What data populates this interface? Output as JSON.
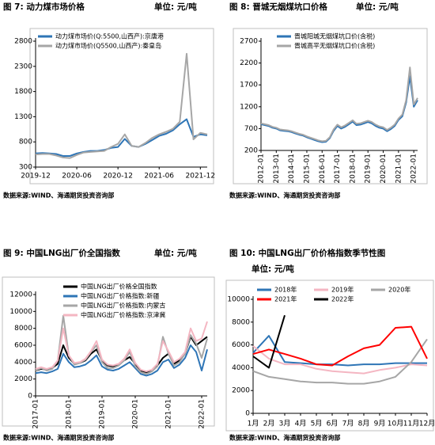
{
  "chart_data": [
    {
      "type": "line",
      "title": "图 7: 动力煤市场价格",
      "unit": "单位: 元/吨",
      "source": "数据来源:WIND、海通期货投资咨询部",
      "categories": [
        "2019-12",
        null,
        null,
        null,
        null,
        null,
        "2020-06",
        null,
        null,
        null,
        null,
        null,
        "2020-12",
        null,
        null,
        null,
        null,
        null,
        "2021-06",
        null,
        null,
        null,
        null,
        null,
        "2021-12",
        null
      ],
      "series": [
        {
          "name": "动力煤市场价(Q:5500,山西产):京唐港",
          "color": "#2e75b6",
          "values": [
            570,
            580,
            570,
            560,
            520,
            520,
            570,
            600,
            620,
            620,
            640,
            680,
            700,
            860,
            720,
            700,
            760,
            840,
            920,
            960,
            1030,
            1150,
            1250,
            900,
            950,
            930
          ]
        },
        {
          "name": "动力煤市场价(Q5500,山西产):秦皇岛",
          "color": "#a6a6a6",
          "values": [
            550,
            560,
            560,
            530,
            490,
            480,
            540,
            590,
            600,
            610,
            620,
            700,
            760,
            950,
            720,
            700,
            780,
            880,
            950,
            1000,
            1060,
            1200,
            2550,
            850,
            980,
            950
          ]
        }
      ],
      "ylim": [
        300,
        2800
      ],
      "yticks": [
        300,
        800,
        1300,
        1800,
        2300,
        2800
      ],
      "x_labels_rotated": false,
      "legend": "upper left",
      "legend_columns": 1
    },
    {
      "type": "line",
      "title": "图 8: 晋城无烟煤坑口价格",
      "unit": "单位: 元/吨",
      "source": "数据来源:WIND、海通期货投资咨询部",
      "categories": [
        "2012-01",
        null,
        null,
        null,
        "2013-01",
        null,
        null,
        null,
        "2014-01",
        null,
        null,
        null,
        "2015-01",
        null,
        null,
        null,
        "2016-01",
        null,
        null,
        null,
        "2017-01",
        null,
        null,
        null,
        "2018-01",
        null,
        null,
        null,
        "2019-01",
        null,
        null,
        null,
        "2020-01",
        null,
        null,
        null,
        "2021-01",
        null,
        null,
        null,
        "2022-01",
        null
      ],
      "series": [
        {
          "name": "晋城阳城无烟煤坑口价(含税)",
          "color": "#2e75b6",
          "values": [
            800,
            780,
            760,
            720,
            700,
            660,
            650,
            640,
            620,
            590,
            560,
            540,
            500,
            470,
            440,
            410,
            390,
            400,
            480,
            650,
            760,
            700,
            740,
            800,
            860,
            780,
            790,
            820,
            850,
            820,
            760,
            720,
            700,
            640,
            690,
            760,
            900,
            980,
            1300,
            1900,
            1200,
            1350
          ]
        },
        {
          "name": "晋城高平无烟煤坑口价(含税)",
          "color": "#a6a6a6",
          "values": [
            820,
            800,
            780,
            740,
            720,
            680,
            670,
            660,
            640,
            610,
            580,
            560,
            520,
            490,
            460,
            430,
            410,
            420,
            500,
            680,
            790,
            730,
            770,
            830,
            890,
            810,
            820,
            850,
            880,
            850,
            790,
            750,
            730,
            670,
            720,
            790,
            930,
            1020,
            1350,
            2100,
            1250,
            1400
          ]
        }
      ],
      "ylim": [
        200,
        2700
      ],
      "yticks": [
        200,
        700,
        1200,
        1700,
        2200,
        2700
      ],
      "x_labels_rotated": true,
      "legend": "upper left",
      "legend_columns": 1
    },
    {
      "type": "line",
      "title": "图 9: 中国LNG出厂价全国指数",
      "unit": "单位: 元/吨",
      "source": "数据来源:WIND、海通期货投资咨询部",
      "categories": [
        "2017-01",
        null,
        null,
        null,
        null,
        null,
        "2018-01",
        null,
        null,
        null,
        null,
        null,
        "2019-01",
        null,
        null,
        null,
        null,
        null,
        "2020-01",
        null,
        null,
        null,
        null,
        null,
        "2021-01",
        null,
        null,
        null,
        null,
        null,
        "2022-01",
        null
      ],
      "series": [
        {
          "name": "中国LNG出厂价格全国指数",
          "color": "#000000",
          "values": [
            3000,
            3200,
            3100,
            3300,
            3800,
            6000,
            4500,
            3800,
            3900,
            4200,
            5000,
            5500,
            4200,
            3600,
            3500,
            3700,
            4200,
            4600,
            3800,
            3000,
            2800,
            3000,
            3600,
            4500,
            5000,
            3800,
            4200,
            5000,
            7000,
            6000,
            6500,
            7000
          ]
        },
        {
          "name": "中国LNG出厂价格指数:新疆",
          "color": "#2e75b6",
          "values": [
            2700,
            2800,
            2700,
            2900,
            3200,
            5000,
            4000,
            3400,
            3500,
            3700,
            4200,
            4800,
            3500,
            3100,
            3000,
            3200,
            3600,
            4000,
            3300,
            2600,
            2400,
            2600,
            3000,
            4000,
            4300,
            3300,
            3700,
            4500,
            6000,
            5200,
            3000,
            5500
          ]
        },
        {
          "name": "中国LNG出厂价格指数:内蒙古",
          "color": "#a6a6a6",
          "values": [
            3000,
            3300,
            3000,
            3200,
            4200,
            9500,
            4800,
            3700,
            3900,
            4300,
            5200,
            6000,
            4000,
            3300,
            3300,
            3600,
            4200,
            5200,
            3500,
            2800,
            2600,
            2900,
            3500,
            7000,
            5000,
            3600,
            4000,
            5000,
            7200,
            6200,
            4500,
            6800
          ]
        },
        {
          "name": "中国LNG出厂价格指数:京津冀",
          "color": "#f4b6c2",
          "values": [
            3200,
            3400,
            3200,
            3400,
            4200,
            8000,
            4800,
            3900,
            4000,
            4400,
            5300,
            6500,
            4300,
            3700,
            3600,
            3800,
            4400,
            5500,
            3900,
            3100,
            2900,
            3100,
            3800,
            6500,
            5300,
            4000,
            4400,
            5200,
            8000,
            6500,
            6800,
            8800
          ]
        }
      ],
      "ylim": [
        0,
        12000
      ],
      "yticks": [
        0,
        2000,
        4000,
        6000,
        8000,
        10000,
        12000
      ],
      "x_labels_rotated": true,
      "legend": "upper left",
      "legend_columns": 1
    },
    {
      "type": "line",
      "title": "图 10: 中国LNG出厂价价格指数季节性图",
      "unit": "单位: 元/吨",
      "source": "数据来源:WIND、海通期货投资咨询部",
      "categories": [
        "1月",
        "2月",
        "3月",
        "4月",
        "5月",
        "6月",
        "7月",
        "8月",
        "9月",
        "10月",
        "11月",
        "12月"
      ],
      "series": [
        {
          "name": "2018年",
          "color": "#2e75b6",
          "values": [
            5300,
            6800,
            4500,
            4400,
            4300,
            4300,
            4200,
            4300,
            4300,
            4400,
            4400,
            4400
          ]
        },
        {
          "name": "2019年",
          "color": "#f4b6c2",
          "values": [
            5900,
            4800,
            4300,
            4300,
            3900,
            3700,
            3600,
            3500,
            3800,
            4000,
            4300,
            4200
          ]
        },
        {
          "name": "2020年",
          "color": "#a6a6a6",
          "values": [
            3700,
            3200,
            3000,
            2800,
            2700,
            2700,
            2600,
            2600,
            2800,
            3200,
            4500,
            6500
          ]
        },
        {
          "name": "2021年",
          "color": "#ff0000",
          "values": [
            5200,
            5600,
            5200,
            4800,
            4300,
            4200,
            5000,
            5700,
            6000,
            7500,
            7600,
            4800
          ]
        },
        {
          "name": "2022年",
          "color": "#000000",
          "values": [
            5000,
            4000,
            8600,
            null,
            null,
            null,
            null,
            null,
            null,
            null,
            null,
            null
          ]
        }
      ],
      "ylim": [
        0,
        10000
      ],
      "yticks": [
        0,
        2000,
        4000,
        6000,
        8000,
        10000
      ],
      "x_labels_rotated": false,
      "legend": "upper left",
      "legend_columns": 3
    }
  ]
}
